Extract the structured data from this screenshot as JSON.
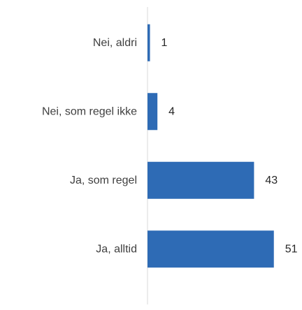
{
  "chart_data": {
    "type": "bar",
    "orientation": "horizontal",
    "categories": [
      "Nei, aldri",
      "Nei, som regel ikke",
      "Ja, som regel",
      "Ja, alltid"
    ],
    "values": [
      1,
      4,
      43,
      51
    ],
    "title": "",
    "xlabel": "",
    "ylabel": "",
    "xlim": [
      0,
      60
    ],
    "grid": false,
    "legend": "none",
    "data_labels": true,
    "bar_color": "#2e6bb5",
    "axis_color": "#d9d9d9"
  }
}
